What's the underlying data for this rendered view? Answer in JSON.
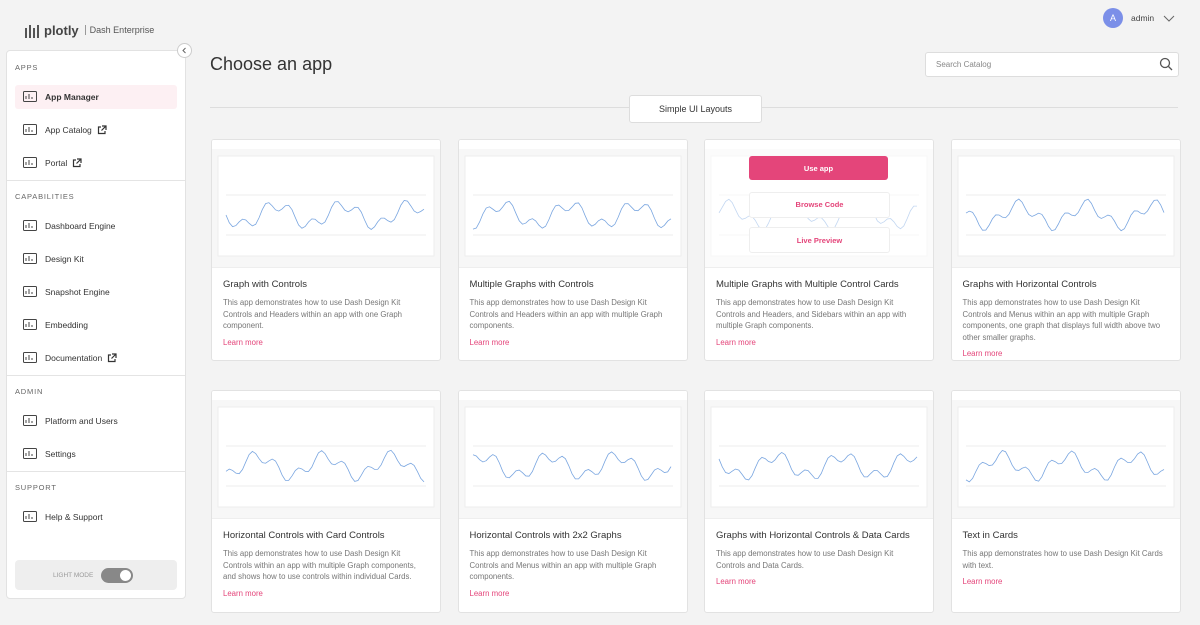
{
  "header": {
    "logo": "plotly",
    "product": "Dash Enterprise",
    "user_initial": "A",
    "user_name": "admin"
  },
  "sidebar": {
    "sections": [
      {
        "title": "APPS",
        "items": [
          {
            "label": "App Manager",
            "active": true
          },
          {
            "label": "App Catalog",
            "external": true
          },
          {
            "label": "Portal",
            "external": true
          }
        ]
      },
      {
        "title": "CAPABILITIES",
        "items": [
          {
            "label": "Dashboard Engine"
          },
          {
            "label": "Design Kit"
          },
          {
            "label": "Snapshot Engine"
          },
          {
            "label": "Embedding"
          },
          {
            "label": "Documentation",
            "external": true
          }
        ]
      },
      {
        "title": "ADMIN",
        "items": [
          {
            "label": "Platform and Users"
          },
          {
            "label": "Settings"
          }
        ]
      },
      {
        "title": "SUPPORT",
        "items": [
          {
            "label": "Help & Support"
          }
        ]
      }
    ],
    "mode_toggle": "LIGHT MODE"
  },
  "main": {
    "title": "Choose an app",
    "search_placeholder": "Search Catalog",
    "tab": "Simple UI Layouts",
    "cards": [
      {
        "title": "Graph with Controls",
        "description": "This app demonstrates how to use Dash Design Kit Controls and Headers within an app with one Graph component.",
        "link": "Learn more"
      },
      {
        "title": "Multiple Graphs with Controls",
        "description": "This app demonstrates how to use Dash Design Kit Controls and Headers within an app with multiple Graph components.",
        "link": "Learn more"
      },
      {
        "title": "Multiple Graphs with Multiple Control Cards",
        "description": "This app demonstrates how to use Dash Design Kit Controls and Headers, and Sidebars within an app with multiple Graph components.",
        "link": "Learn more",
        "actions": [
          "Use app",
          "Browse Code",
          "Live Preview"
        ]
      },
      {
        "title": "Graphs with Horizontal Controls",
        "description": "This app demonstrates how to use Dash Design Kit Controls and Menus within an app with multiple Graph components, one graph that displays full width above two other smaller graphs.",
        "link": "Learn more"
      },
      {
        "title": "Horizontal Controls with Card Controls",
        "description": "This app demonstrates how to use Dash Design Kit Controls within an app with multiple Graph components, and shows how to use controls within individual Cards.",
        "link": "Learn more"
      },
      {
        "title": "Horizontal Controls with 2x2 Graphs",
        "description": "This app demonstrates how to use Dash Design Kit Controls and Menus within an app with multiple Graph components.",
        "link": "Learn more"
      },
      {
        "title": "Graphs with Horizontal Controls & Data Cards",
        "description": "This app demonstrates how to use Dash Design Kit Controls and Data Cards.",
        "link": "Learn more"
      },
      {
        "title": "Text in Cards",
        "description": "This app demonstrates how to use Dash Design Kit Cards with text.",
        "link": "Learn more"
      }
    ]
  }
}
